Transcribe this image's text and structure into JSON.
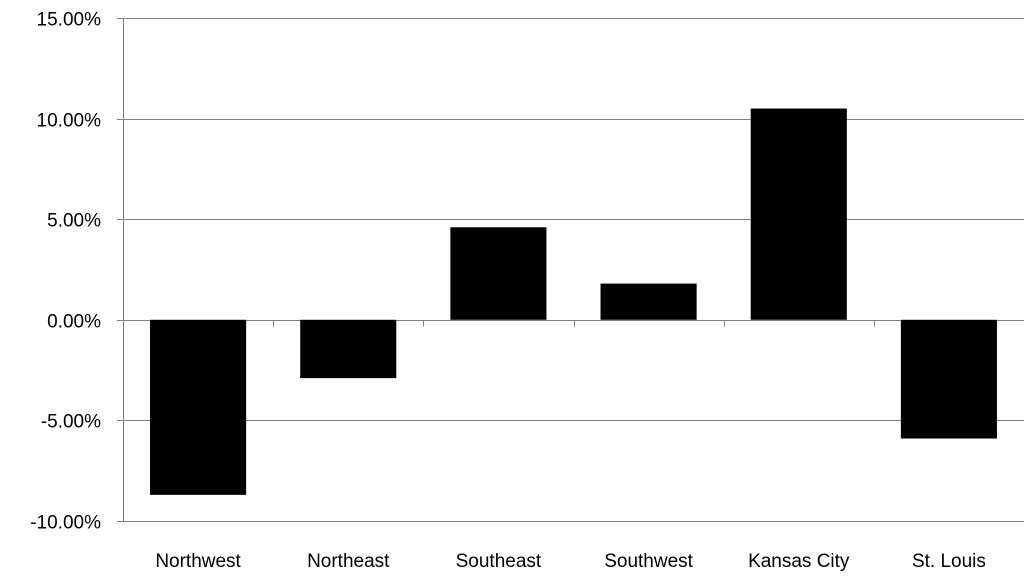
{
  "chart_data": {
    "type": "bar",
    "categories": [
      "Northwest",
      "Northeast",
      "Southeast",
      "Southwest",
      "Kansas City",
      "St. Louis"
    ],
    "values": [
      -8.7,
      -2.9,
      4.6,
      1.8,
      10.5,
      -5.9
    ],
    "value_format": "percent",
    "ylim": [
      -10,
      15
    ],
    "yticks": [
      -10,
      -5,
      0,
      5,
      10,
      15
    ],
    "ytick_labels": [
      "-10.00%",
      "-5.00%",
      "0.00%",
      "5.00%",
      "10.00%",
      "15.00%"
    ],
    "grid": true,
    "legend": "none",
    "title": "",
    "xlabel": "",
    "ylabel": "",
    "colors": {
      "bar": "#000000",
      "grid": "#808080",
      "axis": "#808080",
      "background": "#ffffff"
    }
  }
}
